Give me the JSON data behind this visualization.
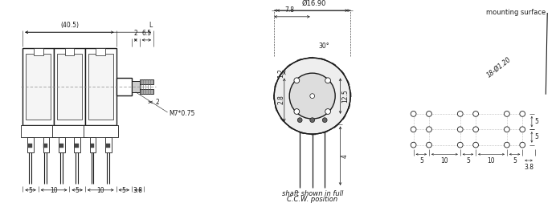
{
  "bg_color": "#ffffff",
  "lc": "#1a1a1a",
  "dc": "#1a1a1a",
  "annotations": {
    "dim_40_5": "(40.5)",
    "dim_L": "L",
    "dim_2a": "2",
    "dim_6_5": "6.5",
    "dim_2b": "2",
    "dim_1_2": "1.2",
    "dim_2_8": "2.8",
    "dim_M7": "M7*0.75",
    "dim_16_90": "Ø16.90",
    "dim_7_8": "7.8",
    "dim_30": "30°",
    "dim_12_5": "12.5",
    "dim_4": "4",
    "shaft_text1": "shaft shown in full",
    "shaft_text2": "C.C.W. position",
    "mounting": "mounting surface",
    "dim_18_phi": "18-Ø1.20",
    "dim_3_8": "3.8",
    "bot_dims_left": [
      "5",
      "10",
      "5",
      "10",
      "5",
      "3.8"
    ],
    "bot_dims_right": [
      "5",
      "10",
      "5",
      "10",
      "5"
    ],
    "side_dims_right": [
      "5",
      "5"
    ],
    "dim_3_8_right": "3.8"
  }
}
